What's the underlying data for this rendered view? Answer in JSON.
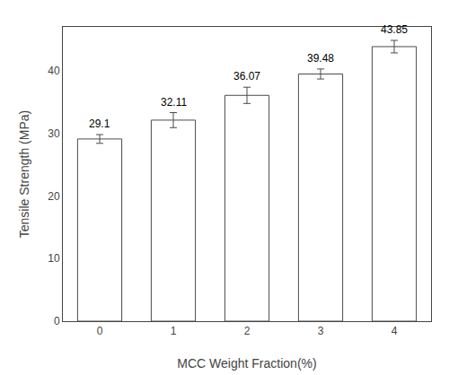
{
  "chart_data": {
    "type": "bar",
    "categories": [
      0,
      1,
      2,
      3,
      4
    ],
    "values": [
      29.1,
      32.11,
      36.07,
      39.48,
      43.85
    ],
    "errors": [
      0.7,
      1.2,
      1.3,
      0.8,
      1.0
    ],
    "color": "#ffffff",
    "xlabel": "MCC Weight Fraction(%)",
    "ylabel": "Tensile Strength (MPa)",
    "ylim": [
      0,
      47
    ],
    "yticks": [
      0,
      10,
      20,
      30,
      40
    ],
    "data_labels": true,
    "grid": false
  }
}
